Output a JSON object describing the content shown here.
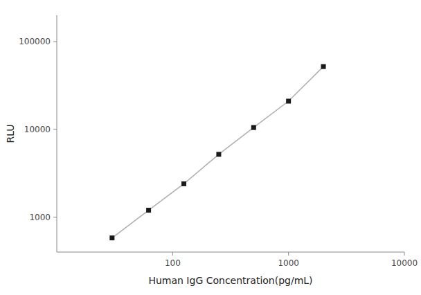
{
  "chart_data": {
    "type": "line",
    "x_label": "Human IgG Concentration(pg/mL)",
    "y_label": "RLU",
    "x": [
      30,
      62,
      125,
      250,
      500,
      1000,
      2000
    ],
    "values": [
      580,
      1200,
      2400,
      5200,
      10500,
      21000,
      52000
    ],
    "color": "#1a1a1a",
    "marker": "square",
    "log": true,
    "grid": false,
    "xlim": [
      10,
      10000
    ],
    "ylim": [
      400,
      200000
    ],
    "xticks": [
      100,
      1000,
      10000
    ],
    "yticks": [
      1000,
      10000,
      100000
    ]
  }
}
